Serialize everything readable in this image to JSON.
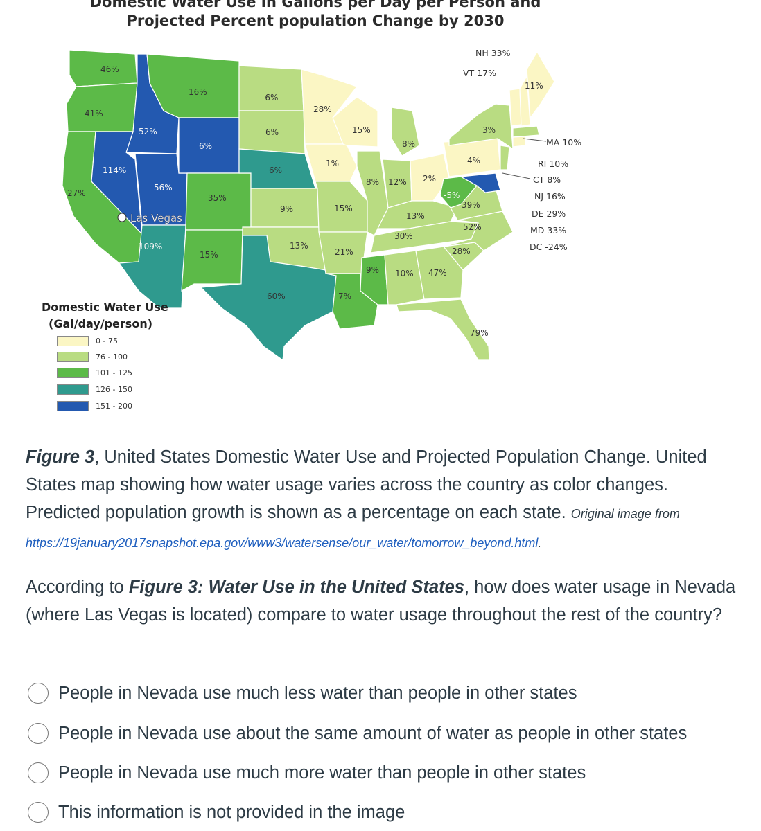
{
  "map": {
    "title_line1": "Domestic Water Use in Gallons per Day per Person and",
    "title_line2": "Projected Percent population Change by 2030",
    "colors": {
      "c0_75": "#fbf6c4",
      "c76_100": "#b9dc82",
      "c101_125": "#5cba48",
      "c126_150": "#2f9a8e",
      "c151_200": "#2359b0"
    },
    "legend": {
      "title_line1": "Domestic Water Use",
      "title_line2": "(Gal/day/person)",
      "items": [
        {
          "label": "0 - 75",
          "color": "#fbf6c4"
        },
        {
          "label": "76 - 100",
          "color": "#b9dc82"
        },
        {
          "label": "101 - 125",
          "color": "#5cba48"
        },
        {
          "label": "126 - 150",
          "color": "#2f9a8e"
        },
        {
          "label": "151 - 200",
          "color": "#2359b0"
        }
      ]
    },
    "city": "Las Vegas",
    "labels": {
      "WA": "46%",
      "OR": "41%",
      "CA": "27%",
      "ID": "52%",
      "NV": "114%",
      "UT": "56%",
      "AZ": "109%",
      "MT": "16%",
      "WY": "6%",
      "CO": "35%",
      "NM": "15%",
      "ND": "-6%",
      "SD": "6%",
      "NE": "6%",
      "KS": "9%",
      "OK": "13%",
      "TX": "60%",
      "MN": "28%",
      "IA": "1%",
      "MO": "15%",
      "AR": "21%",
      "LA": "7%",
      "WI": "15%",
      "IL": "8%",
      "MI": "8%",
      "IN": "12%",
      "OH": "2%",
      "KY": "13%",
      "TN": "30%",
      "MS": "9%",
      "AL": "10%",
      "GA": "47%",
      "FL": "79%",
      "SC": "28%",
      "NC": "52%",
      "VA": "39%",
      "WV": "-5%",
      "PA": "4%",
      "NY": "3%",
      "ME": "11%",
      "NH": "NH 33%",
      "VT": "VT 17%"
    },
    "northeast_notes": [
      "MA 10%",
      "RI 10%",
      "CT 8%",
      "NJ 16%",
      "DE 29%",
      "MD 33%",
      "DC -24%"
    ]
  },
  "caption": {
    "fig_label": "Figure 3",
    "text": ", United States Domestic Water Use and Projected Population Change. United States map showing how water usage varies across the country as color changes. Predicted population growth is shown as a percentage on each state.",
    "source_prefix": "Original image from",
    "url": "https://19january2017snapshot.epa.gov/www3/watersense/our_water/tomorrow_beyond.html",
    "end": "."
  },
  "question": {
    "prefix": "According to",
    "figure_ref": "Figure 3: Water Use in the United States",
    "text": ", how does water usage in Nevada (where Las Vegas is located) compare to water usage throughout the rest of the country?"
  },
  "options": [
    "People in Nevada use much less water than people in other states",
    "People in Nevada use about the same amount of water as people in other states",
    "People in Nevada use much more water than people in other states",
    "This information is not provided in the image"
  ]
}
